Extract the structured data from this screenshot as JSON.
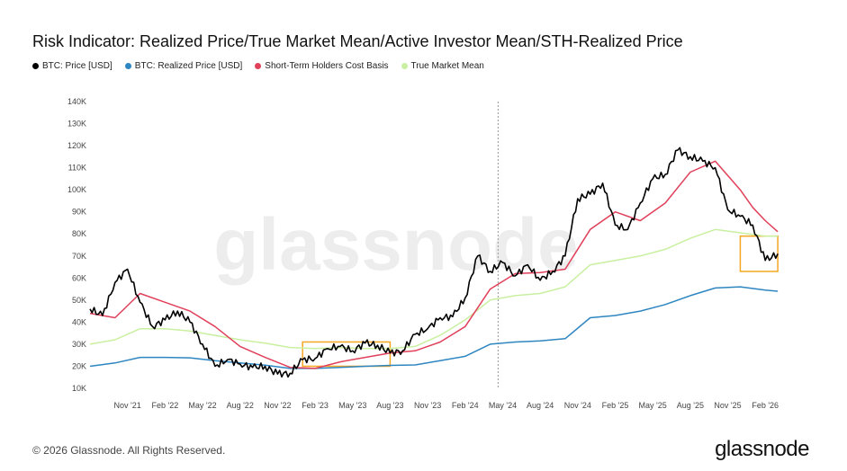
{
  "title": "Risk Indicator: Realized Price/True Market Mean/Active Investor Mean/STH-Realized Price",
  "legend": [
    {
      "label": "BTC: Price [USD]",
      "color": "#000000"
    },
    {
      "label": "BTC: Realized Price [USD]",
      "color": "#2e86c1"
    },
    {
      "label": "Short-Term Holders Cost Basis",
      "color": "#e0405a"
    },
    {
      "label": "True Market Mean",
      "color": "#c9f0a0"
    }
  ],
  "watermark": "glassnode",
  "footer": "© 2026 Glassnode. All Rights Reserved.",
  "brand": "glassnode",
  "chart_data": {
    "type": "line",
    "xlabels": [
      "Nov '21",
      "Feb '22",
      "May '22",
      "Aug '22",
      "Nov '22",
      "Feb '23",
      "May '23",
      "Aug '23",
      "Nov '23",
      "Feb '24",
      "May '24",
      "Aug '24",
      "Nov '24",
      "Feb '25",
      "May '25",
      "Aug '25",
      "Nov '25",
      "Feb '26"
    ],
    "yticks": [
      "10K",
      "20K",
      "30K",
      "40K",
      "50K",
      "60K",
      "70K",
      "80K",
      "90K",
      "100K",
      "110K",
      "120K",
      "130K",
      "140K"
    ],
    "ylim": [
      10000,
      140000
    ],
    "xlim": [
      "2021-08",
      "2026-04"
    ],
    "grid": false,
    "legend_position": "top-left",
    "series": [
      {
        "name": "BTC: Price [USD]",
        "color": "#000000",
        "x": [
          "2021-08",
          "2021-09",
          "2021-10",
          "2021-11",
          "2021-12",
          "2022-01",
          "2022-02",
          "2022-03",
          "2022-04",
          "2022-05",
          "2022-06",
          "2022-07",
          "2022-08",
          "2022-09",
          "2022-10",
          "2022-11",
          "2022-12",
          "2023-01",
          "2023-02",
          "2023-03",
          "2023-04",
          "2023-05",
          "2023-06",
          "2023-07",
          "2023-08",
          "2023-09",
          "2023-10",
          "2023-11",
          "2023-12",
          "2024-01",
          "2024-02",
          "2024-03",
          "2024-04",
          "2024-05",
          "2024-06",
          "2024-07",
          "2024-08",
          "2024-09",
          "2024-10",
          "2024-11",
          "2024-12",
          "2025-01",
          "2025-02",
          "2025-03",
          "2025-04",
          "2025-05",
          "2025-06",
          "2025-07",
          "2025-08",
          "2025-09",
          "2025-10",
          "2025-11",
          "2025-12",
          "2026-01",
          "2026-02",
          "2026-03"
        ],
        "values": [
          46000,
          43000,
          58000,
          64000,
          49000,
          38000,
          41000,
          45000,
          40000,
          30000,
          20000,
          23000,
          21000,
          19500,
          20000,
          16500,
          16800,
          23000,
          23500,
          28000,
          29000,
          27000,
          30500,
          29500,
          26000,
          27000,
          34500,
          37000,
          42000,
          42500,
          51000,
          70000,
          63000,
          67000,
          61000,
          66000,
          59000,
          63000,
          70000,
          96000,
          98000,
          103000,
          84000,
          82000,
          94000,
          105000,
          107000,
          118000,
          115000,
          113000,
          110000,
          91000,
          88000,
          84000,
          68000,
          71000
        ]
      },
      {
        "name": "BTC: Realized Price [USD]",
        "color": "#2e86c1",
        "x": [
          "2021-08",
          "2021-10",
          "2021-12",
          "2022-02",
          "2022-04",
          "2022-06",
          "2022-08",
          "2022-10",
          "2022-12",
          "2023-02",
          "2023-04",
          "2023-06",
          "2023-08",
          "2023-10",
          "2023-12",
          "2024-02",
          "2024-04",
          "2024-06",
          "2024-08",
          "2024-10",
          "2024-12",
          "2025-02",
          "2025-04",
          "2025-06",
          "2025-08",
          "2025-10",
          "2025-12",
          "2026-02",
          "2026-03"
        ],
        "values": [
          20000,
          21500,
          24000,
          24000,
          23800,
          22500,
          21500,
          20500,
          19000,
          19000,
          19500,
          20000,
          20400,
          20600,
          22500,
          24500,
          30000,
          31000,
          31500,
          32500,
          42000,
          43000,
          45000,
          48000,
          52000,
          55500,
          56000,
          54500,
          54000
        ]
      },
      {
        "name": "Short-Term Holders Cost Basis",
        "color": "#e0405a",
        "x": [
          "2021-08",
          "2021-10",
          "2021-12",
          "2022-02",
          "2022-04",
          "2022-06",
          "2022-08",
          "2022-10",
          "2022-12",
          "2023-02",
          "2023-04",
          "2023-06",
          "2023-08",
          "2023-10",
          "2023-12",
          "2024-02",
          "2024-04",
          "2024-06",
          "2024-08",
          "2024-10",
          "2024-12",
          "2025-02",
          "2025-04",
          "2025-06",
          "2025-08",
          "2025-10",
          "2025-12",
          "2026-01",
          "2026-02",
          "2026-03"
        ],
        "values": [
          44000,
          42000,
          53000,
          49000,
          45000,
          38000,
          29000,
          24000,
          19500,
          19000,
          22000,
          24000,
          26000,
          27000,
          31000,
          38000,
          55000,
          62000,
          62500,
          64000,
          82000,
          90000,
          86000,
          94000,
          108000,
          113000,
          100000,
          92000,
          86000,
          81000
        ]
      },
      {
        "name": "True Market Mean",
        "color": "#c9f0a0",
        "x": [
          "2021-08",
          "2021-10",
          "2021-12",
          "2022-02",
          "2022-04",
          "2022-06",
          "2022-08",
          "2022-10",
          "2022-12",
          "2023-02",
          "2023-04",
          "2023-06",
          "2023-08",
          "2023-10",
          "2023-12",
          "2024-02",
          "2024-04",
          "2024-06",
          "2024-08",
          "2024-10",
          "2024-12",
          "2025-02",
          "2025-04",
          "2025-06",
          "2025-08",
          "2025-10",
          "2025-12",
          "2026-02",
          "2026-03"
        ],
        "values": [
          30000,
          32000,
          37000,
          37000,
          36000,
          34000,
          32000,
          30500,
          28500,
          28000,
          28500,
          28000,
          28000,
          29000,
          34000,
          41000,
          50000,
          52000,
          53000,
          56000,
          66000,
          68000,
          70000,
          73000,
          78000,
          82000,
          80500,
          79000,
          79000
        ]
      }
    ],
    "annotations": [
      {
        "type": "box",
        "color": "#f5a623",
        "x": [
          "2023-01",
          "2023-08"
        ],
        "y": [
          20000,
          31000
        ]
      },
      {
        "type": "box",
        "color": "#f5a623",
        "x": [
          "2025-12",
          "2026-03"
        ],
        "y": [
          63000,
          79000
        ]
      },
      {
        "type": "vline",
        "style": "dashed",
        "x": "2024-04-20"
      }
    ]
  }
}
